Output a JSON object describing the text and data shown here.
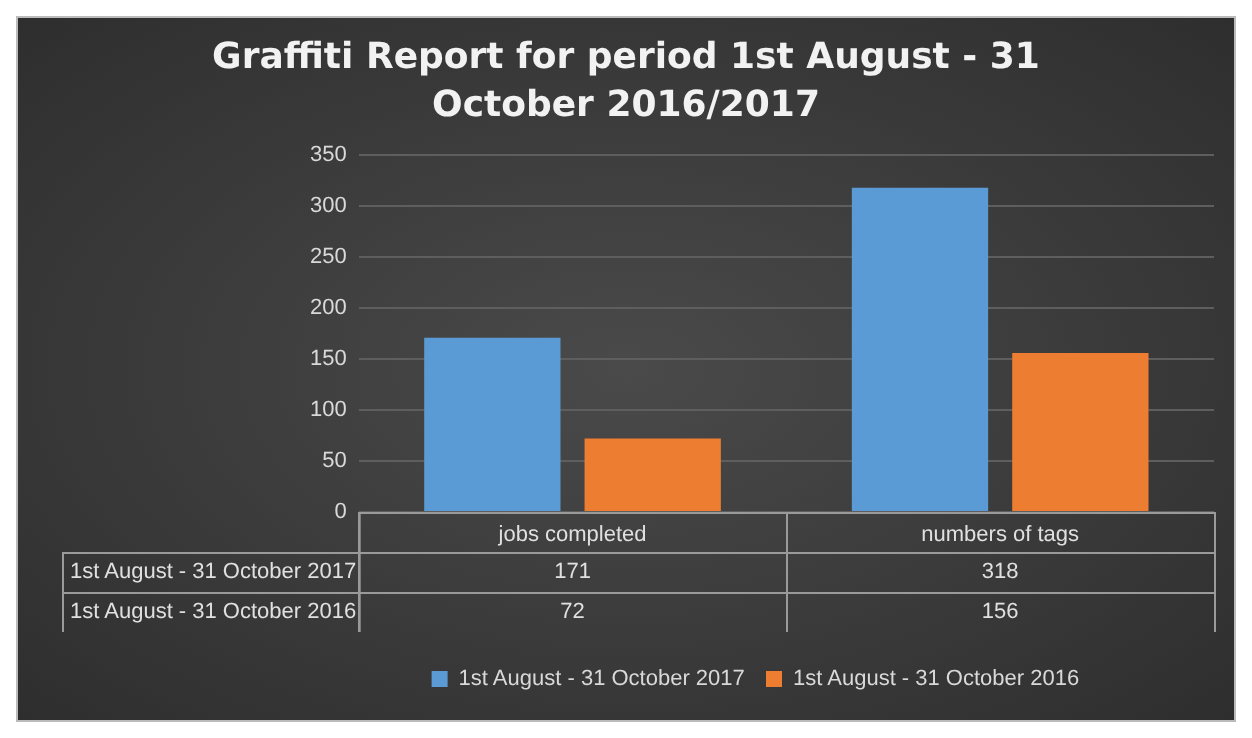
{
  "chart_data": {
    "type": "bar",
    "title": "Graffiti Report for period 1st August - 31 October 2016/2017",
    "categories": [
      "jobs completed",
      "numbers of tags"
    ],
    "series": [
      {
        "name": "1st August - 31 October 2017",
        "color": "#5b9bd5",
        "values": [
          171,
          318
        ]
      },
      {
        "name": "1st August - 31 October 2016",
        "color": "#ed7d31",
        "values": [
          72,
          156
        ]
      }
    ],
    "ylim": [
      0,
      350
    ],
    "yticks": [
      0,
      50,
      100,
      150,
      200,
      250,
      300,
      350
    ],
    "grid": "y",
    "legend": "bottom",
    "data_labels": true
  }
}
